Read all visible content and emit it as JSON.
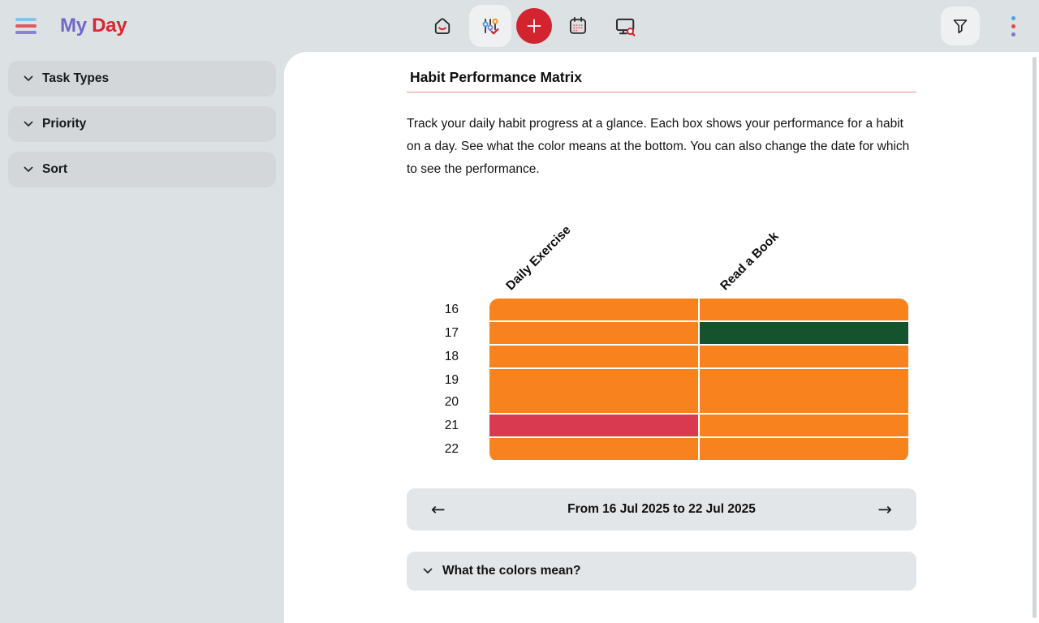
{
  "header": {
    "logo": {
      "part1": "My",
      "part2": "Day"
    },
    "menu_icon": "hamburger-icon",
    "toolbar_icons": [
      "home-icon",
      "habit-sliders-icon",
      "add-plus-button",
      "calendar-icon",
      "task-search-icon"
    ],
    "active_toolbar_icon": "habit-sliders-icon",
    "right_icons": [
      "filter-icon",
      "kebab-menu-icon"
    ]
  },
  "sidebar": {
    "items": [
      {
        "label": "Task Types"
      },
      {
        "label": "Priority"
      },
      {
        "label": "Sort"
      }
    ]
  },
  "main": {
    "title": "Habit Performance Matrix",
    "description": "Track your daily habit progress at a glance. Each box shows your performance for a habit on a day. See what the color means at the bottom. You can also change the date for which to see the performance.",
    "date_nav": {
      "label": "From 16 Jul 2025 to 22 Jul 2025",
      "prev_icon": "←",
      "next_icon": "→"
    },
    "legend_accordion": {
      "label": "What the colors mean?"
    }
  },
  "colors": {
    "page_bg": "#dce1e4",
    "panel_bg": "#ffffff",
    "button_bg": "#eef0f2",
    "accent_red": "#d2232f",
    "logo_purple": "#6f67c9",
    "logo_red": "#e02430",
    "title_rule": "#ed8a96"
  },
  "chart_data": {
    "type": "heatmap",
    "title": "Habit Performance Matrix",
    "columns": [
      "Daily Exercise",
      "Read a Book"
    ],
    "row_labels": [
      "16",
      "17",
      "18",
      "19",
      "20",
      "21",
      "22"
    ],
    "x_range_label": "16 Jul 2025 to 22 Jul 2025",
    "palette": {
      "orange": "#F8821D",
      "red": "#DA3A4F",
      "green": "#15532F"
    },
    "cells": [
      [
        "orange",
        "orange"
      ],
      [
        "orange",
        "green"
      ],
      [
        "orange",
        "orange"
      ],
      [
        "orange",
        "orange"
      ],
      [
        "orange",
        "orange"
      ],
      [
        "red",
        "orange"
      ],
      [
        "orange",
        "orange"
      ]
    ],
    "no_gap_after_rows": [
      3
    ],
    "legend_position": "collapsed-bottom"
  }
}
